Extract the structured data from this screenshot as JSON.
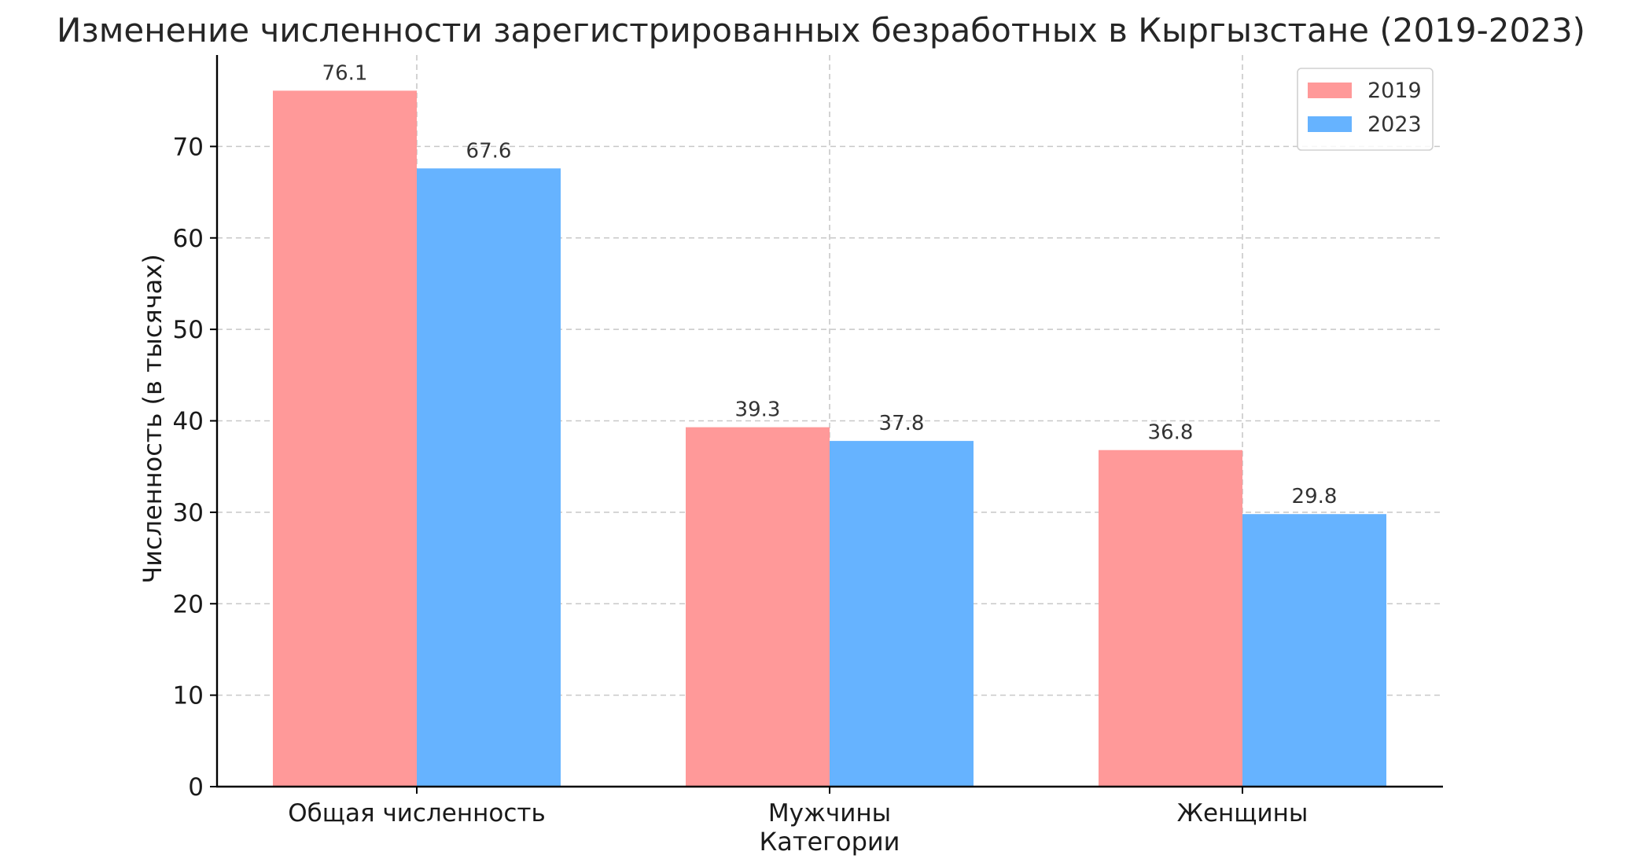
{
  "chart_data": {
    "type": "bar",
    "title": "Изменение численности зарегистрированных безработных в Кыргызстане (2019-2023)",
    "xlabel": "Категории",
    "ylabel": "Численность (в тысячах)",
    "categories": [
      "Общая численность",
      "Мужчины",
      "Женщины"
    ],
    "series": [
      {
        "name": "2019",
        "color": "#ff9999",
        "values": [
          76.1,
          39.3,
          36.8
        ]
      },
      {
        "name": "2023",
        "color": "#66b3ff",
        "values": [
          67.6,
          37.8,
          29.8
        ]
      }
    ],
    "ylim": [
      0,
      80
    ],
    "yticks": [
      0,
      10,
      20,
      30,
      40,
      50,
      60,
      70
    ],
    "grid": true,
    "legend_position": "top-right"
  }
}
